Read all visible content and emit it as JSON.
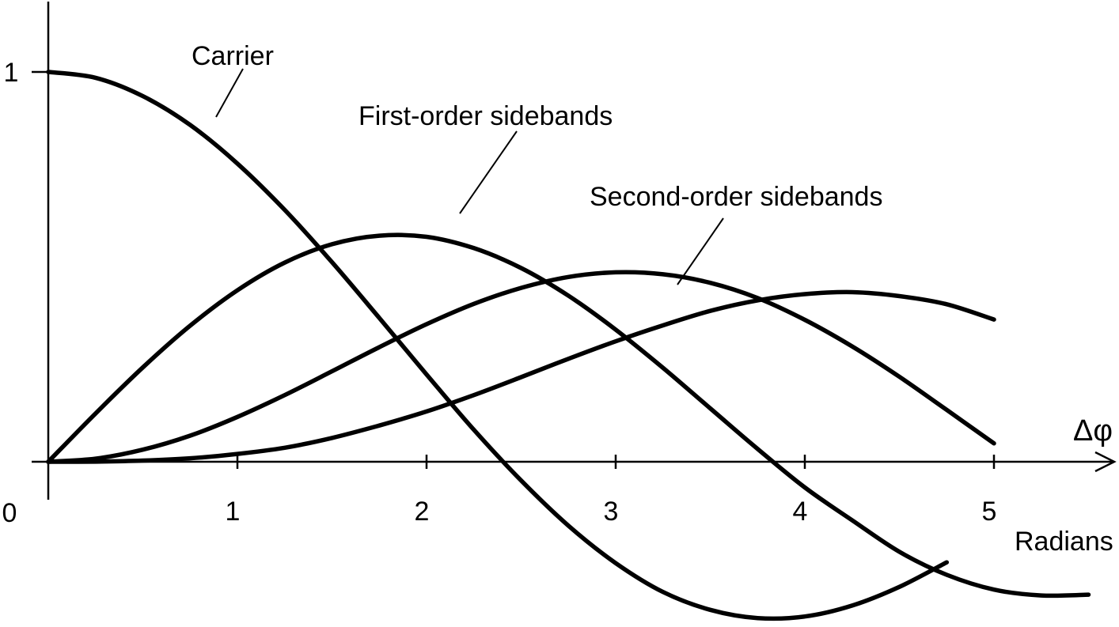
{
  "chart_data": {
    "type": "line",
    "title": "",
    "xlabel": "Radians",
    "x_symbol": "Δφ",
    "ylabel": "",
    "xlim": [
      0,
      5.6
    ],
    "ylim": [
      -0.42,
      1.2
    ],
    "x_ticks": [
      "0",
      "1",
      "2",
      "3",
      "4",
      "5"
    ],
    "y_ticks": [
      "1"
    ],
    "grid": false,
    "series": [
      {
        "name": "Carrier",
        "x": [
          0,
          0.25,
          0.5,
          0.75,
          1.0,
          1.25,
          1.5,
          1.75,
          2.0,
          2.25,
          2.5,
          2.75,
          3.0,
          3.25,
          3.5,
          3.75,
          4.0,
          4.25,
          4.5,
          4.75
        ],
        "values": [
          1.0,
          0.985,
          0.938,
          0.864,
          0.765,
          0.646,
          0.512,
          0.369,
          0.224,
          0.082,
          -0.048,
          -0.164,
          -0.26,
          -0.334,
          -0.38,
          -0.401,
          -0.397,
          -0.369,
          -0.321,
          -0.258
        ]
      },
      {
        "name": "First-order sidebands",
        "x": [
          0,
          0.25,
          0.5,
          0.75,
          1.0,
          1.25,
          1.5,
          1.75,
          2.0,
          2.25,
          2.5,
          2.75,
          3.0,
          3.25,
          3.5,
          3.75,
          4.0,
          4.25,
          4.5,
          4.75,
          5.0,
          5.25,
          5.5
        ],
        "values": [
          0,
          0.124,
          0.242,
          0.349,
          0.44,
          0.511,
          0.558,
          0.58,
          0.577,
          0.548,
          0.497,
          0.426,
          0.339,
          0.241,
          0.137,
          0.033,
          -0.066,
          -0.15,
          -0.231,
          -0.29,
          -0.328,
          -0.343,
          -0.341
        ]
      },
      {
        "name": "Second-order sidebands",
        "x": [
          0,
          0.25,
          0.5,
          0.75,
          1.0,
          1.25,
          1.5,
          1.75,
          2.0,
          2.25,
          2.5,
          2.75,
          3.0,
          3.25,
          3.5,
          3.75,
          4.0,
          4.25,
          4.5,
          4.75,
          5.0
        ],
        "values": [
          0,
          0.008,
          0.031,
          0.067,
          0.115,
          0.171,
          0.232,
          0.294,
          0.353,
          0.405,
          0.446,
          0.474,
          0.486,
          0.481,
          0.459,
          0.42,
          0.364,
          0.296,
          0.218,
          0.133,
          0.047
        ]
      },
      {
        "name": "",
        "x": [
          0,
          0.25,
          0.5,
          0.75,
          1.0,
          1.25,
          1.5,
          1.75,
          2.0,
          2.25,
          2.5,
          2.75,
          3.0,
          3.25,
          3.5,
          3.75,
          4.0,
          4.25,
          4.5,
          4.75,
          5.0
        ],
        "values": [
          0,
          0.0003,
          0.003,
          0.009,
          0.02,
          0.036,
          0.061,
          0.093,
          0.129,
          0.171,
          0.217,
          0.264,
          0.309,
          0.35,
          0.387,
          0.414,
          0.43,
          0.435,
          0.425,
          0.404,
          0.365
        ]
      }
    ]
  }
}
